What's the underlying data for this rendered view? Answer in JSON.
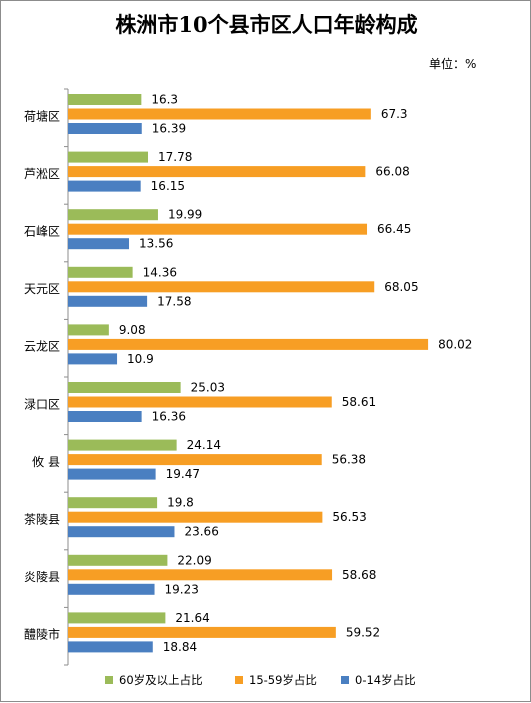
{
  "chart_data": {
    "type": "bar",
    "orientation": "horizontal",
    "title": "株洲市10个县市区人口年龄构成",
    "unit": "单位：%",
    "categories": [
      "荷塘区",
      "芦淞区",
      "石峰区",
      "天元区",
      "云龙区",
      "渌口区",
      "攸  县",
      "茶陵县",
      "炎陵县",
      "醴陵市"
    ],
    "series": [
      {
        "name": "60岁及以上占比",
        "color": "#9bbb59",
        "values": [
          16.3,
          17.78,
          19.99,
          14.36,
          9.08,
          25.03,
          24.14,
          19.8,
          22.09,
          21.64
        ]
      },
      {
        "name": "15-59岁占比",
        "color": "#f79e24",
        "values": [
          67.3,
          66.08,
          66.45,
          68.05,
          80.02,
          58.61,
          56.38,
          56.53,
          58.68,
          59.52
        ]
      },
      {
        "name": "0-14岁占比",
        "color": "#4a7fc1",
        "values": [
          16.39,
          16.15,
          13.56,
          17.58,
          10.9,
          16.36,
          19.47,
          23.66,
          19.23,
          18.84
        ]
      }
    ],
    "value_labels": [
      [
        "16.3",
        "67.3",
        "16.39"
      ],
      [
        "17.78",
        "66.08",
        "16.15"
      ],
      [
        "19.99",
        "66.45",
        "13.56"
      ],
      [
        "14.36",
        "68.05",
        "17.58"
      ],
      [
        "9.08",
        "80.02",
        "10.9"
      ],
      [
        "25.03",
        "58.61",
        "16.36"
      ],
      [
        "24.14",
        "56.38",
        "19.47"
      ],
      [
        "19.8",
        "56.53",
        "23.66"
      ],
      [
        "22.09",
        "58.68",
        "19.23"
      ],
      [
        "21.64",
        "59.52",
        "18.84"
      ]
    ],
    "xlim": [
      0,
      100
    ],
    "grid": false,
    "legend_position": "bottom"
  }
}
